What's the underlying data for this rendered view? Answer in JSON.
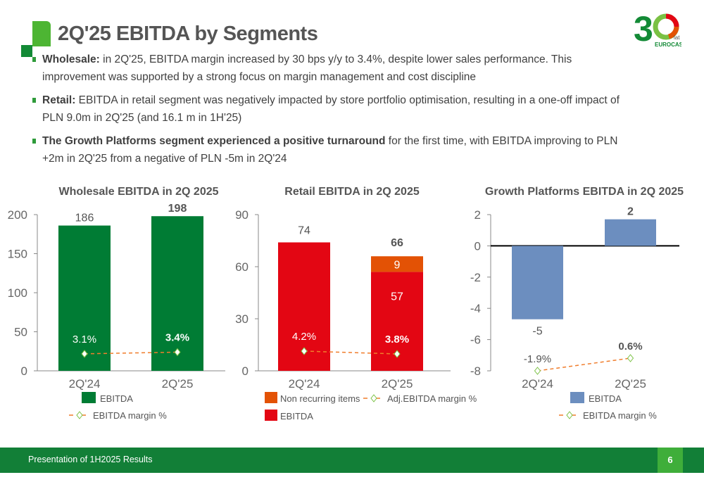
{
  "header": {
    "title": "2Q'25 EBITDA by Segments",
    "logo_text": "30 lat EUROCASH"
  },
  "bullets": [
    {
      "bold": "Wholesale:",
      "text": " in 2Q'25, EBITDA margin increased by 30 bps y/y to 3.4%, despite lower sales performance. This improvement was supported by a strong focus on margin management and cost discipline"
    },
    {
      "bold": "Retail:",
      "text": " EBITDA in retail segment was negatively impacted by store portfolio optimisation, resulting in a one-off impact of PLN 9.0m in 2Q'25 (and 16.1 m in 1H'25)"
    },
    {
      "bold": "The Growth Platforms segment experienced a positive turnaround",
      "text": " for the first time, with EBITDA improving to PLN +2m in 2Q'25 from a negative of PLN -5m in 2Q'24"
    }
  ],
  "colors": {
    "wholesale": "#007c34",
    "retail": "#e30613",
    "nonrec": "#e35205",
    "gp": "#6c8ebf",
    "margin_line": "#f07d2c",
    "marker": "#7ac143"
  },
  "chart_data": [
    {
      "type": "bar",
      "title": "Wholesale EBITDA in 2Q 2025",
      "categories": [
        "2Q'24",
        "2Q'25"
      ],
      "ylim": [
        0,
        200
      ],
      "yticks": [
        0,
        50,
        100,
        150,
        200
      ],
      "series": [
        {
          "name": "EBITDA",
          "values": [
            186,
            198
          ],
          "labels": [
            "186",
            "198"
          ]
        }
      ],
      "margin": {
        "name": "EBITDA margin %",
        "values": [
          3.1,
          3.4
        ],
        "labels": [
          "3.1%",
          "3.4%"
        ]
      }
    },
    {
      "type": "bar",
      "stacked": true,
      "title": "Retail EBITDA in 2Q 2025",
      "categories": [
        "2Q'24",
        "2Q'25"
      ],
      "ylim": [
        0,
        90
      ],
      "yticks": [
        0,
        30,
        60,
        90
      ],
      "series": [
        {
          "name": "EBITDA",
          "values": [
            74,
            57
          ],
          "labels": [
            "74",
            "57"
          ]
        },
        {
          "name": "Non recurring items",
          "values": [
            0,
            9
          ],
          "labels": [
            "",
            "9"
          ]
        }
      ],
      "totals": [
        "",
        "66"
      ],
      "margin": {
        "name": "Adj.EBITDA margin %",
        "values": [
          4.2,
          3.8
        ],
        "labels": [
          "4.2%",
          "3.8%"
        ]
      }
    },
    {
      "type": "bar",
      "title": "Growth Platforms  EBITDA in 2Q 2025",
      "categories": [
        "2Q'24",
        "2Q'25"
      ],
      "ylim": [
        -8,
        2
      ],
      "yticks": [
        -8,
        -6,
        -4,
        -2,
        0,
        2
      ],
      "series": [
        {
          "name": "EBITDA",
          "values": [
            -4.7,
            1.7
          ],
          "labels": [
            "-5",
            "2"
          ]
        }
      ],
      "margin": {
        "name": "EBITDA margin %",
        "values": [
          -1.9,
          0.6
        ],
        "labels": [
          "-1.9%",
          "0.6%"
        ]
      }
    }
  ],
  "footer": {
    "text": "Presentation of 1H2025 Results",
    "page": "6"
  }
}
